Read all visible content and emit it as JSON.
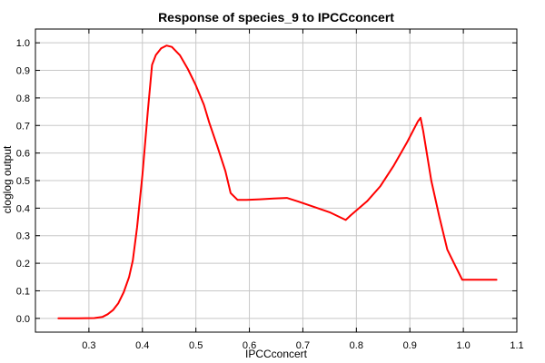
{
  "chart_data": {
    "type": "line",
    "title": "Response of species_9 to IPCCconcert",
    "xlabel": "IPCCconcert",
    "ylabel": "cloglog output",
    "xlim": [
      0.2,
      1.1
    ],
    "ylim": [
      -0.05,
      1.05
    ],
    "grid": true,
    "legend": "none",
    "xticks": [
      {
        "value": 0.3,
        "label": "0.3"
      },
      {
        "value": 0.4,
        "label": "0.4"
      },
      {
        "value": 0.5,
        "label": "0.5"
      },
      {
        "value": 0.6,
        "label": "0.6"
      },
      {
        "value": 0.7,
        "label": "0.7"
      },
      {
        "value": 0.8,
        "label": "0.8"
      },
      {
        "value": 0.9,
        "label": "0.9"
      },
      {
        "value": 1.0,
        "label": "1.0"
      },
      {
        "value": 1.1,
        "label": "1.1"
      }
    ],
    "yticks": [
      {
        "value": 0.0,
        "label": "0.0"
      },
      {
        "value": 0.1,
        "label": "0.1"
      },
      {
        "value": 0.2,
        "label": "0.2"
      },
      {
        "value": 0.3,
        "label": "0.3"
      },
      {
        "value": 0.4,
        "label": "0.4"
      },
      {
        "value": 0.5,
        "label": "0.5"
      },
      {
        "value": 0.6,
        "label": "0.6"
      },
      {
        "value": 0.7,
        "label": "0.7"
      },
      {
        "value": 0.8,
        "label": "0.8"
      },
      {
        "value": 0.9,
        "label": "0.9"
      },
      {
        "value": 1.0,
        "label": "1.0"
      }
    ],
    "series": [
      {
        "color": "#ff0000",
        "points": [
          [
            0.243,
            0.0
          ],
          [
            0.28,
            0.0
          ],
          [
            0.31,
            0.001
          ],
          [
            0.325,
            0.005
          ],
          [
            0.335,
            0.015
          ],
          [
            0.345,
            0.03
          ],
          [
            0.355,
            0.055
          ],
          [
            0.365,
            0.095
          ],
          [
            0.375,
            0.15
          ],
          [
            0.382,
            0.21
          ],
          [
            0.39,
            0.33
          ],
          [
            0.4,
            0.52
          ],
          [
            0.41,
            0.75
          ],
          [
            0.418,
            0.92
          ],
          [
            0.425,
            0.955
          ],
          [
            0.435,
            0.98
          ],
          [
            0.445,
            0.99
          ],
          [
            0.455,
            0.985
          ],
          [
            0.47,
            0.955
          ],
          [
            0.485,
            0.905
          ],
          [
            0.5,
            0.845
          ],
          [
            0.515,
            0.775
          ],
          [
            0.525,
            0.71
          ],
          [
            0.54,
            0.625
          ],
          [
            0.555,
            0.535
          ],
          [
            0.565,
            0.455
          ],
          [
            0.578,
            0.43
          ],
          [
            0.595,
            0.43
          ],
          [
            0.62,
            0.432
          ],
          [
            0.645,
            0.435
          ],
          [
            0.67,
            0.437
          ],
          [
            0.69,
            0.425
          ],
          [
            0.72,
            0.405
          ],
          [
            0.75,
            0.385
          ],
          [
            0.78,
            0.357
          ],
          [
            0.79,
            0.375
          ],
          [
            0.82,
            0.425
          ],
          [
            0.845,
            0.48
          ],
          [
            0.87,
            0.555
          ],
          [
            0.895,
            0.64
          ],
          [
            0.915,
            0.715
          ],
          [
            0.92,
            0.728
          ],
          [
            0.925,
            0.68
          ],
          [
            0.94,
            0.5
          ],
          [
            0.955,
            0.37
          ],
          [
            0.97,
            0.25
          ],
          [
            0.985,
            0.19
          ],
          [
            0.998,
            0.14
          ],
          [
            1.02,
            0.14
          ],
          [
            1.062,
            0.14
          ]
        ]
      }
    ]
  }
}
